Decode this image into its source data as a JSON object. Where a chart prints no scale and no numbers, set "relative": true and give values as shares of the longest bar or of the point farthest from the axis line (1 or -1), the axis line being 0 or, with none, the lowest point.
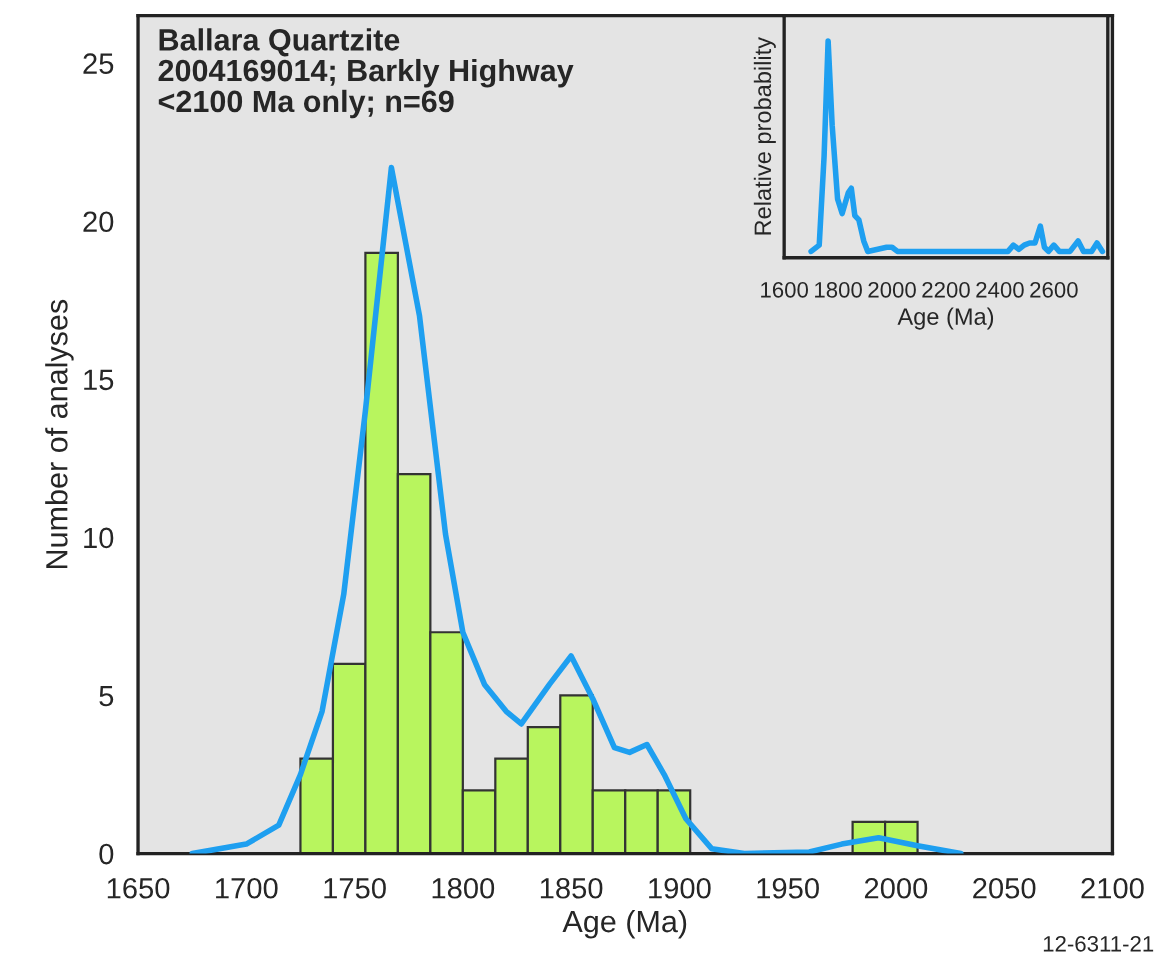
{
  "chart_data": [
    {
      "type": "histogram",
      "title": "Ballara Quartzite\n2004169014; Barkly Highway\n<2100 Ma only; n=69",
      "xlabel": "Age (Ma)",
      "ylabel": "Number of analyses",
      "xlim": [
        1650,
        2100
      ],
      "ylim": [
        0,
        26.5
      ],
      "xticks": [
        1650,
        1700,
        1750,
        1800,
        1850,
        1900,
        1950,
        2000,
        2050,
        2100
      ],
      "yticks": [
        0,
        5,
        10,
        15,
        20,
        25
      ],
      "grid": false,
      "series": [
        {
          "color": "#b8f55e",
          "bins": [
            1725,
            1740,
            1755,
            1770,
            1785,
            1800,
            1815,
            1830,
            1845,
            1860,
            1875,
            1890,
            1905,
            1920,
            1935,
            1950,
            1965,
            1980,
            1995,
            2010
          ],
          "values": [
            3,
            6,
            19,
            12,
            7,
            2,
            3,
            4,
            5,
            2,
            2,
            2,
            null,
            null,
            null,
            null,
            null,
            1,
            1
          ]
        },
        {
          "type": "line",
          "color": "#1e9ff0",
          "x": [
            1675,
            1700,
            1715,
            1725,
            1735,
            1745,
            1755,
            1767,
            1780,
            1792,
            1800,
            1810,
            1820,
            1827,
            1840,
            1850,
            1860,
            1870,
            1877,
            1885,
            1893,
            1903,
            1915,
            1930,
            1960,
            1975,
            1992,
            2010,
            2030
          ],
          "values": [
            0,
            0.3,
            0.9,
            2.5,
            4.5,
            8.2,
            14,
            21.7,
            17,
            10.1,
            7,
            5.35,
            4.5,
            4.1,
            5.35,
            6.25,
            4.9,
            3.35,
            3.2,
            3.45,
            2.5,
            1.1,
            0.15,
            0,
            0.05,
            0.3,
            0.5,
            0.25,
            0
          ]
        }
      ],
      "annotations": [
        "12-6311-21"
      ]
    },
    {
      "type": "line",
      "relative": true,
      "xlabel": "Age (Ma)",
      "ylabel": "Relative probability",
      "xlim": [
        1600,
        2800
      ],
      "xticks": [
        1600,
        1800,
        2000,
        2200,
        2400,
        2600
      ],
      "grid": false,
      "series": [
        {
          "color": "#1e9ff0",
          "x": [
            1700,
            1730,
            1748,
            1763,
            1778,
            1798,
            1815,
            1838,
            1849,
            1862,
            1877,
            1895,
            1910,
            1980,
            2000,
            2020,
            2430,
            2450,
            2470,
            2490,
            2510,
            2530,
            2550,
            2565,
            2580,
            2600,
            2620,
            2660,
            2690,
            2710,
            2740,
            2760,
            2780
          ],
          "values": [
            0,
            0.03,
            0.45,
            1.0,
            0.6,
            0.25,
            0.18,
            0.28,
            0.3,
            0.17,
            0.15,
            0.05,
            0,
            0.02,
            0.02,
            0,
            0,
            0.03,
            0.01,
            0.03,
            0.04,
            0.04,
            0.12,
            0.02,
            0,
            0.03,
            0,
            0,
            0.05,
            0,
            0,
            0.04,
            0
          ]
        }
      ]
    }
  ]
}
